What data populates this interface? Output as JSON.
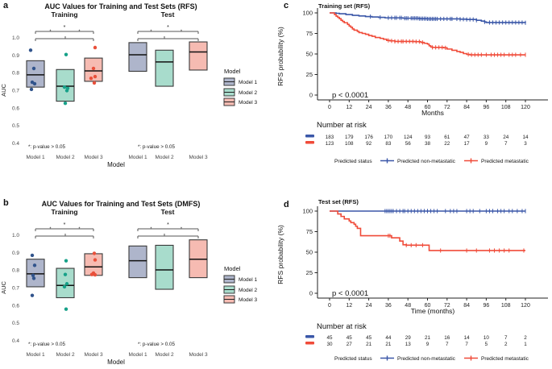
{
  "figure": {
    "panels": [
      {
        "letter": "a"
      },
      {
        "letter": "b"
      },
      {
        "letter": "c"
      },
      {
        "letter": "d"
      }
    ]
  },
  "palette": {
    "model1_fill": "#AEB5CB",
    "model2_fill": "#A8DCCC",
    "model3_fill": "#F6BBB2",
    "model1_point": "#31548C",
    "model2_point": "#17A189",
    "model3_point": "#E9503B",
    "km_blue": "#3A57A8",
    "km_red": "#F04B39",
    "box_stroke": "#3A3A3A",
    "axis_color": "#222222"
  },
  "chart_data": [
    {
      "id": "a",
      "type": "box",
      "title": "AUC Values for Training and Test Sets (RFS)",
      "ylabel": "AUC",
      "xlabel": "Model",
      "ylim": [
        0.4,
        1.0
      ],
      "yticks": [
        1.0,
        0.9,
        0.8,
        0.7,
        0.6,
        0.5,
        0.4
      ],
      "categories": [
        "Model 1",
        "Model 2",
        "Model 3"
      ],
      "legend_title": "Model",
      "note": "*: p-value > 0.05",
      "sig_label": "*",
      "facets": [
        {
          "label": "Training",
          "boxes": [
            {
              "category": "Model 1",
              "q1": 0.72,
              "median": 0.79,
              "q3": 0.87,
              "points": [
                [
                  0.93,
                  -6
                ],
                [
                  0.826,
                  -2
                ],
                [
                  0.748,
                  -4
                ],
                [
                  0.739,
                  -1
                ],
                [
                  0.707,
                  -5
                ]
              ]
            },
            {
              "category": "Model 2",
              "q1": 0.64,
              "median": 0.725,
              "q3": 0.82,
              "points": [
                [
                  0.905,
                  1
                ],
                [
                  0.72,
                  -1
                ],
                [
                  0.713,
                  3
                ],
                [
                  0.7,
                  2
                ],
                [
                  0.628,
                  0
                ]
              ]
            },
            {
              "category": "Model 3",
              "q1": 0.753,
              "median": 0.812,
              "q3": 0.885,
              "points": [
                [
                  0.945,
                  2
                ],
                [
                  0.826,
                  0
                ],
                [
                  0.78,
                  2
                ],
                [
                  0.77,
                  -3
                ],
                [
                  0.744,
                  1
                ]
              ]
            }
          ]
        },
        {
          "label": "Test",
          "boxes": [
            {
              "category": "Model 1",
              "q1": 0.81,
              "median": 0.904,
              "q3": 0.973,
              "points": []
            },
            {
              "category": "Model 2",
              "q1": 0.725,
              "median": 0.863,
              "q3": 0.93,
              "points": []
            },
            {
              "category": "Model 3",
              "q1": 0.817,
              "median": 0.92,
              "q3": 0.977,
              "points": []
            }
          ]
        }
      ]
    },
    {
      "id": "b",
      "type": "box",
      "title": "AUC Values for Training and Test Sets (DMFS)",
      "ylabel": "AUC",
      "xlabel": "Model",
      "ylim": [
        0.4,
        1.0
      ],
      "yticks": [
        1.0,
        0.9,
        0.8,
        0.7,
        0.6,
        0.5,
        0.4
      ],
      "categories": [
        "Model 1",
        "Model 2",
        "Model 3"
      ],
      "legend_title": "Model",
      "note": "*: p-value > 0.05",
      "sig_label": "*",
      "facets": [
        {
          "label": "Training",
          "boxes": [
            {
              "category": "Model 1",
              "q1": 0.707,
              "median": 0.781,
              "q3": 0.864,
              "points": [
                [
                  0.886,
                  -4
                ],
                [
                  0.829,
                  -1
                ],
                [
                  0.772,
                  -3
                ],
                [
                  0.755,
                  -2
                ],
                [
                  0.658,
                  -4
                ]
              ]
            },
            {
              "category": "Model 2",
              "q1": 0.645,
              "median": 0.715,
              "q3": 0.812,
              "points": [
                [
                  0.855,
                  1
                ],
                [
                  0.777,
                  0
                ],
                [
                  0.724,
                  2
                ],
                [
                  0.707,
                  -1
                ],
                [
                  0.58,
                  1
                ]
              ]
            },
            {
              "category": "Model 3",
              "q1": 0.772,
              "median": 0.82,
              "q3": 0.895,
              "points": [
                [
                  0.897,
                  1
                ],
                [
                  0.86,
                  2
                ],
                [
                  0.785,
                  0
                ],
                [
                  0.777,
                  -2
                ],
                [
                  0.775,
                  2
                ]
              ]
            }
          ]
        },
        {
          "label": "Test",
          "boxes": [
            {
              "category": "Model 1",
              "q1": 0.759,
              "median": 0.855,
              "q3": 0.939,
              "points": []
            },
            {
              "category": "Model 2",
              "q1": 0.693,
              "median": 0.803,
              "q3": 0.943,
              "points": []
            },
            {
              "category": "Model 3",
              "q1": 0.759,
              "median": 0.864,
              "q3": 0.974,
              "points": []
            }
          ]
        }
      ]
    },
    {
      "id": "c",
      "type": "km",
      "title": "Training set (RFS)",
      "ylabel": "RFS probability (%)",
      "xlabel": "Months",
      "xticks": [
        0,
        12,
        24,
        36,
        48,
        60,
        72,
        84,
        96,
        108,
        120
      ],
      "yticks": [
        0,
        25,
        50,
        75,
        100
      ],
      "ylim": [
        0,
        100
      ],
      "pvalue": "p < 0.0001",
      "risk_title": "Number at risk",
      "legend_title": "Predicted status",
      "series": [
        {
          "name": "Predicted non-metastatic",
          "color_key": "km_blue",
          "steps": [
            [
              0,
              100
            ],
            [
              4,
              99.5
            ],
            [
              6,
              99
            ],
            [
              10,
              98
            ],
            [
              14,
              97
            ],
            [
              18,
              96.3
            ],
            [
              22,
              95.5
            ],
            [
              26,
              95
            ],
            [
              30,
              94.5
            ],
            [
              34,
              94
            ],
            [
              45,
              93.5
            ],
            [
              55,
              93
            ],
            [
              60,
              92.7
            ],
            [
              80,
              92.3
            ],
            [
              84,
              92
            ],
            [
              90,
              91
            ],
            [
              93,
              90
            ],
            [
              95,
              89
            ],
            [
              96,
              88.3
            ],
            [
              120,
              88
            ]
          ],
          "censors": [
            25,
            31,
            36,
            38,
            40,
            41,
            43,
            44,
            46,
            47,
            48,
            50,
            51,
            52,
            53,
            54,
            55,
            56,
            57,
            58,
            59,
            60,
            61,
            62,
            63,
            64,
            65,
            66,
            68,
            70,
            72,
            74,
            75,
            78,
            80,
            82,
            84,
            86,
            88,
            90,
            95,
            98,
            100,
            102,
            104,
            106,
            108,
            110,
            112,
            114,
            116,
            118,
            120
          ],
          "at_risk": [
            183,
            179,
            176,
            170,
            124,
            93,
            61,
            47,
            33,
            24,
            14
          ]
        },
        {
          "name": "Predicted metastatic",
          "color_key": "km_red",
          "steps": [
            [
              0,
              100
            ],
            [
              3,
              98
            ],
            [
              4,
              96
            ],
            [
              5,
              94.5
            ],
            [
              6,
              93
            ],
            [
              7,
              91
            ],
            [
              8,
              89.5
            ],
            [
              9,
              88
            ],
            [
              11,
              86
            ],
            [
              12,
              84
            ],
            [
              13,
              82.5
            ],
            [
              14,
              80.5
            ],
            [
              15,
              79
            ],
            [
              17,
              77.5
            ],
            [
              18,
              76
            ],
            [
              20,
              75
            ],
            [
              22,
              74
            ],
            [
              24,
              72.5
            ],
            [
              26,
              71.5
            ],
            [
              28,
              70
            ],
            [
              31,
              69
            ],
            [
              33,
              68
            ],
            [
              35,
              66.5
            ],
            [
              37,
              66
            ],
            [
              40,
              65.3
            ],
            [
              52,
              65
            ],
            [
              56,
              64
            ],
            [
              58,
              63
            ],
            [
              60,
              62
            ],
            [
              61,
              60
            ],
            [
              62,
              58.5
            ],
            [
              63,
              58
            ],
            [
              70,
              57.5
            ],
            [
              72,
              56
            ],
            [
              75,
              54.5
            ],
            [
              78,
              53
            ],
            [
              80,
              52
            ],
            [
              82,
              50.5
            ],
            [
              84,
              49.5
            ],
            [
              86,
              49
            ],
            [
              120,
              49
            ]
          ],
          "censors": [
            36,
            38,
            40,
            42,
            44,
            45,
            47,
            49,
            51,
            53,
            55,
            57,
            63,
            65,
            67,
            69,
            71,
            85,
            87,
            89,
            91,
            93,
            96,
            99,
            101,
            103,
            105,
            107,
            110,
            112,
            114,
            117,
            120
          ],
          "at_risk": [
            123,
            108,
            92,
            83,
            56,
            38,
            22,
            17,
            9,
            7,
            3
          ]
        }
      ]
    },
    {
      "id": "d",
      "type": "km",
      "title": "Test set (RFS)",
      "ylabel": "RFS probability (%)",
      "xlabel": "Time (months)",
      "xticks": [
        0,
        12,
        24,
        36,
        48,
        60,
        72,
        84,
        96,
        108,
        120
      ],
      "yticks": [
        0,
        25,
        50,
        75,
        100
      ],
      "ylim": [
        0,
        100
      ],
      "pvalue": "p < 0.0001",
      "risk_title": "Number at risk",
      "legend_title": "Predicted status",
      "series": [
        {
          "name": "Predicted non-metastatic",
          "color_key": "km_blue",
          "steps": [
            [
              0,
              100
            ],
            [
              120,
              100
            ]
          ],
          "censors": [
            34,
            35,
            36,
            37,
            38,
            39,
            41,
            43,
            45,
            46,
            48,
            50,
            52,
            54,
            56,
            58,
            60,
            62,
            64,
            66,
            71,
            74,
            76,
            78,
            84,
            86,
            88,
            92,
            96,
            98,
            100,
            103,
            105,
            107,
            110,
            112,
            115,
            118,
            120
          ],
          "at_risk": [
            45,
            45,
            45,
            44,
            29,
            21,
            16,
            14,
            10,
            7,
            2
          ]
        },
        {
          "name": "Predicted metastatic",
          "color_key": "km_red",
          "steps": [
            [
              0,
              100
            ],
            [
              5,
              96.5
            ],
            [
              7,
              93.5
            ],
            [
              9,
              90.5
            ],
            [
              12,
              88
            ],
            [
              13,
              86
            ],
            [
              15,
              84
            ],
            [
              16,
              81.5
            ],
            [
              17,
              79
            ],
            [
              19,
              70
            ],
            [
              38,
              67.5
            ],
            [
              43,
              63.5
            ],
            [
              45,
              59
            ],
            [
              47,
              58.5
            ],
            [
              61,
              52
            ],
            [
              120,
              52
            ]
          ],
          "censors": [
            36,
            37,
            47,
            50,
            53,
            57,
            68,
            84,
            90,
            98,
            101,
            104,
            107,
            110,
            119
          ],
          "at_risk": [
            30,
            27,
            21,
            21,
            13,
            9,
            7,
            7,
            5,
            2,
            1
          ]
        }
      ]
    }
  ]
}
